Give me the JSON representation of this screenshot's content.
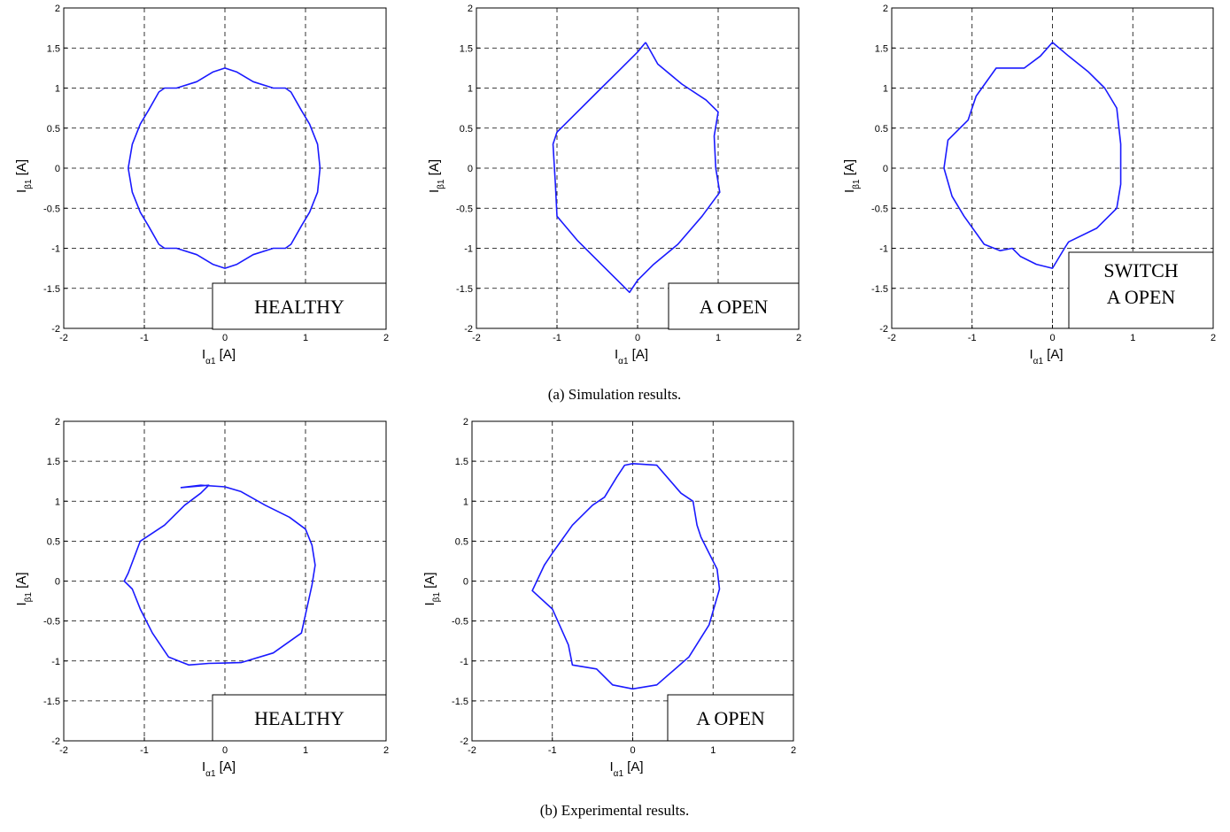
{
  "captions": {
    "top": "(a) Simulation results.",
    "bottom": "(b) Experimental results."
  },
  "axis_labels": {
    "x_main": "I",
    "x_sub": "α1",
    "x_unit": " [A]",
    "y_main": "I",
    "y_sub": "β1",
    "y_unit": " [A]"
  },
  "colors": {
    "trace": "#1a1aff",
    "grid": "#000000"
  },
  "chart_data": [
    {
      "type": "line",
      "group": "(a) Simulation results.",
      "box_label": [
        "HEALTHY"
      ],
      "xlim": [
        -2,
        2
      ],
      "ylim": [
        -2,
        2
      ],
      "xticks": [
        "-2",
        "-1",
        "0",
        "1",
        "2"
      ],
      "yticks": [
        "2",
        "1.5",
        "1",
        "0.5",
        "0",
        "-0.5",
        "-1",
        "-1.5",
        "-2"
      ],
      "grid": true,
      "series": [
        {
          "x": [
            0.0,
            0.15,
            0.35,
            0.6,
            0.75,
            0.82,
            0.95,
            1.05,
            1.15,
            1.18,
            1.15,
            1.05,
            0.95,
            0.82,
            0.75,
            0.6,
            0.35,
            0.15,
            0.0,
            -0.15,
            -0.35,
            -0.6,
            -0.75,
            -0.82,
            -0.95,
            -1.05,
            -1.15,
            -1.2,
            -1.15,
            -1.05,
            -0.95,
            -0.82,
            -0.75,
            -0.6,
            -0.35,
            -0.15,
            0.0
          ],
          "y": [
            1.25,
            1.2,
            1.08,
            1.0,
            1.0,
            0.95,
            0.72,
            0.55,
            0.3,
            0.0,
            -0.3,
            -0.55,
            -0.72,
            -0.95,
            -1.0,
            -1.0,
            -1.08,
            -1.2,
            -1.25,
            -1.2,
            -1.08,
            -1.0,
            -1.0,
            -0.95,
            -0.72,
            -0.55,
            -0.3,
            0.0,
            0.3,
            0.55,
            0.72,
            0.95,
            1.0,
            1.0,
            1.08,
            1.2,
            1.25
          ]
        }
      ]
    },
    {
      "type": "line",
      "group": "(a) Simulation results.",
      "box_label": [
        "A OPEN"
      ],
      "xlim": [
        -2,
        2
      ],
      "ylim": [
        -2,
        2
      ],
      "xticks": [
        "-2",
        "-1",
        "0",
        "1",
        "2"
      ],
      "yticks": [
        "2",
        "1.5",
        "1",
        "0.5",
        "0",
        "-0.5",
        "-1",
        "-1.5",
        "-2"
      ],
      "grid": true,
      "series": [
        {
          "x": [
            0.1,
            0.25,
            0.55,
            0.85,
            1.0,
            0.95,
            0.97,
            1.02,
            0.8,
            0.5,
            0.2,
            0.0,
            -0.1,
            -0.2,
            -0.45,
            -0.75,
            -1.0,
            -1.02,
            -1.05,
            -1.0,
            -0.8,
            -0.5,
            -0.25,
            0.0,
            0.1
          ],
          "y": [
            1.57,
            1.3,
            1.05,
            0.85,
            0.7,
            0.4,
            0.0,
            -0.3,
            -0.6,
            -0.95,
            -1.2,
            -1.4,
            -1.55,
            -1.45,
            -1.2,
            -0.9,
            -0.6,
            -0.2,
            0.3,
            0.45,
            0.65,
            0.95,
            1.2,
            1.45,
            1.57
          ]
        }
      ]
    },
    {
      "type": "line",
      "group": "(a) Simulation results.",
      "box_label": [
        "SWITCH",
        "A OPEN"
      ],
      "xlim": [
        -2,
        2
      ],
      "ylim": [
        -2,
        2
      ],
      "xticks": [
        "-2",
        "-1",
        "0",
        "1",
        "2"
      ],
      "yticks": [
        "2",
        "1.5",
        "1",
        "0.5",
        "0",
        "-0.5",
        "-1",
        "-1.5",
        "-2"
      ],
      "grid": true,
      "series": [
        {
          "x": [
            0.0,
            0.2,
            0.45,
            0.65,
            0.8,
            0.85,
            0.85,
            0.8,
            0.55,
            0.2,
            0.15,
            0.0,
            -0.2,
            -0.4,
            -0.5,
            -0.65,
            -0.85,
            -1.1,
            -1.25,
            -1.35,
            -1.3,
            -1.05,
            -0.95,
            -0.7,
            -0.35,
            -0.15,
            0.0
          ],
          "y": [
            1.57,
            1.4,
            1.2,
            1.0,
            0.75,
            0.3,
            -0.2,
            -0.5,
            -0.75,
            -0.92,
            -1.0,
            -1.25,
            -1.2,
            -1.1,
            -1.0,
            -1.03,
            -0.95,
            -0.6,
            -0.35,
            0.0,
            0.35,
            0.6,
            0.9,
            1.25,
            1.25,
            1.4,
            1.57
          ]
        }
      ]
    },
    {
      "type": "line",
      "group": "(b) Experimental results.",
      "box_label": [
        "HEALTHY"
      ],
      "xlim": [
        -2,
        2
      ],
      "ylim": [
        -2,
        2
      ],
      "xticks": [
        "-2",
        "-1",
        "0",
        "1",
        "2"
      ],
      "yticks": [
        "2",
        "1.5",
        "1",
        "0.5",
        "0",
        "-0.5",
        "-1",
        "-1.5",
        "-2"
      ],
      "grid": true,
      "series": [
        {
          "x": [
            -0.55,
            -0.3,
            0.0,
            0.2,
            0.5,
            0.8,
            1.0,
            1.08,
            1.12,
            1.08,
            0.95,
            0.6,
            0.2,
            -0.2,
            -0.45,
            -0.7,
            -0.9,
            -1.05,
            -1.15,
            -1.25,
            -1.2,
            -1.05,
            -0.75,
            -0.5,
            -0.3,
            -0.2,
            -0.55
          ],
          "y": [
            1.17,
            1.2,
            1.18,
            1.12,
            0.95,
            0.8,
            0.65,
            0.45,
            0.2,
            -0.05,
            -0.65,
            -0.9,
            -1.02,
            -1.03,
            -1.05,
            -0.95,
            -0.65,
            -0.35,
            -0.1,
            0.0,
            0.1,
            0.5,
            0.7,
            0.95,
            1.1,
            1.2,
            1.17
          ]
        }
      ]
    },
    {
      "type": "line",
      "group": "(b) Experimental results.",
      "box_label": [
        "A OPEN"
      ],
      "xlim": [
        -2,
        2
      ],
      "ylim": [
        -2,
        2
      ],
      "xticks": [
        "-2",
        "-1",
        "0",
        "1",
        "2"
      ],
      "yticks": [
        "2",
        "1.5",
        "1",
        "0.5",
        "0",
        "-0.5",
        "-1",
        "-1.5",
        "-2"
      ],
      "grid": true,
      "series": [
        {
          "x": [
            0.0,
            0.3,
            0.6,
            0.75,
            0.8,
            0.85,
            1.05,
            1.08,
            0.95,
            0.7,
            0.3,
            0.0,
            -0.25,
            -0.45,
            -0.75,
            -0.8,
            -1.0,
            -1.25,
            -1.1,
            -1.0,
            -0.75,
            -0.5,
            -0.35,
            -0.2,
            -0.1,
            0.0
          ],
          "y": [
            1.47,
            1.45,
            1.1,
            1.0,
            0.7,
            0.55,
            0.15,
            -0.1,
            -0.55,
            -0.95,
            -1.3,
            -1.35,
            -1.3,
            -1.1,
            -1.05,
            -0.8,
            -0.35,
            -0.12,
            0.2,
            0.35,
            0.7,
            0.95,
            1.05,
            1.3,
            1.45,
            1.47
          ]
        }
      ]
    }
  ]
}
